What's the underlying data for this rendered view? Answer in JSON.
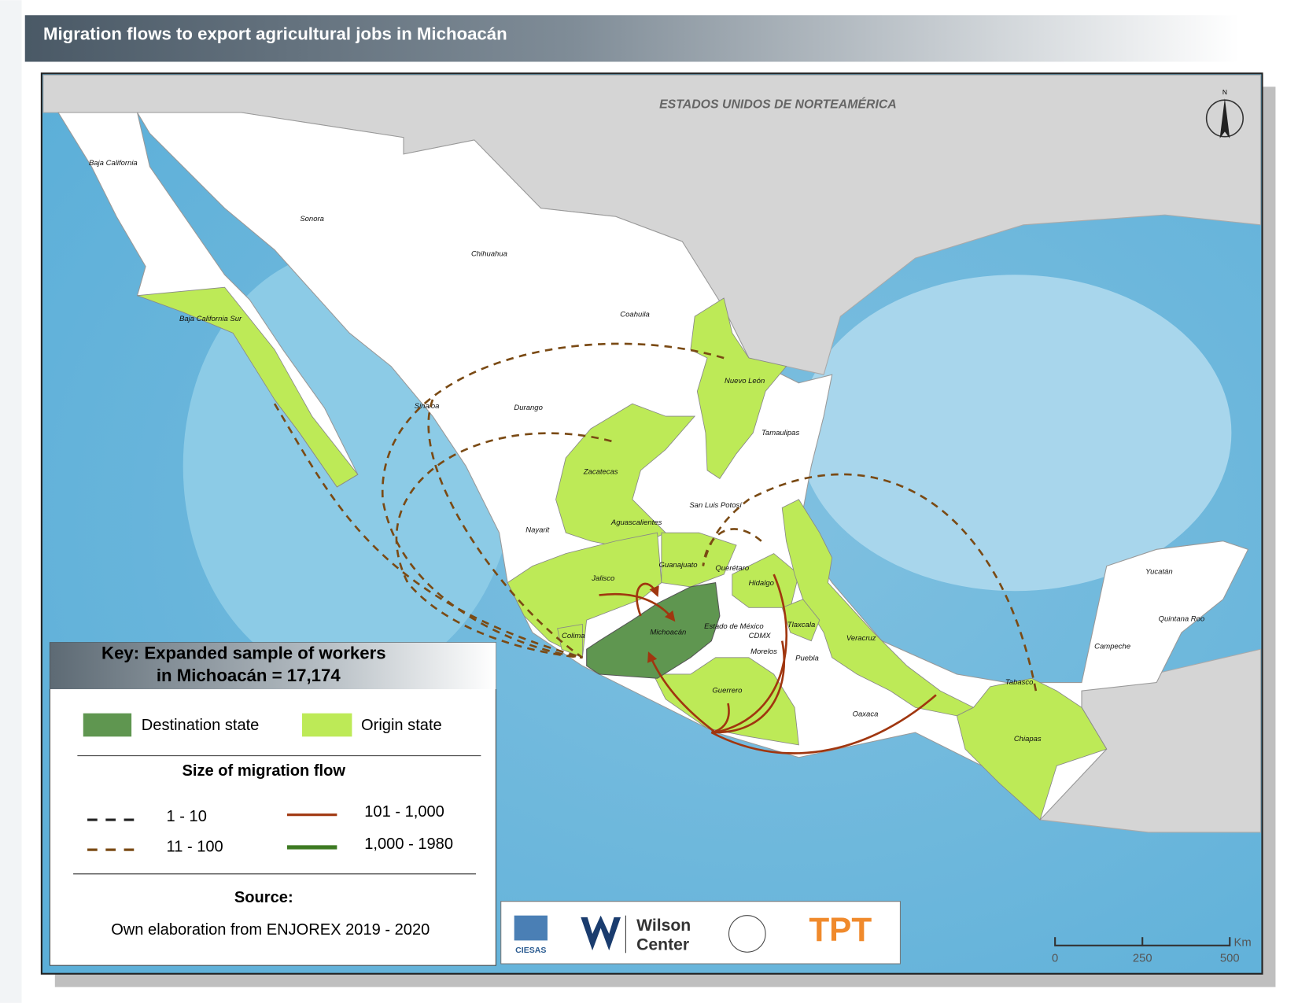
{
  "title": "Migration flows to export agricultural jobs in Michoacán",
  "map": {
    "country_label": "ESTADOS UNIDOS DE NORTEAMÉRICA",
    "north": "N",
    "states": [
      "Baja California",
      "Sonora",
      "Chihuahua",
      "Baja California Sur",
      "Coahuila",
      "Nuevo León",
      "Sinaloa",
      "Durango",
      "Tamaulipas",
      "Zacatecas",
      "San Luis Potosí",
      "Aguascalientes",
      "Nayarit",
      "Guanajuato",
      "Querétaro",
      "Hidalgo",
      "Jalisco",
      "Michoacán",
      "Estado de México",
      "Tlaxcala",
      "CDMX",
      "Colima",
      "Morelos",
      "Puebla",
      "Veracruz",
      "Guerrero",
      "Oaxaca",
      "Chiapas",
      "Tabasco",
      "Campeche",
      "Yucatán",
      "Quintana Roo"
    ]
  },
  "legend": {
    "key_lines": [
      "Key:  Expanded sample of workers",
      "in Michoacán = 17,174"
    ],
    "destination": {
      "label": "Destination state",
      "color": "#5f9650"
    },
    "origin": {
      "label": "Origin state",
      "color": "#bdea57"
    },
    "flow_title": "Size of migration flow",
    "flows": [
      {
        "label": "1 - 10",
        "color": "#222222",
        "dashed": true
      },
      {
        "label": "11 - 100",
        "color": "#7a4a14",
        "dashed": true
      },
      {
        "label": "101 - 1,000",
        "color": "#a0360f",
        "dashed": false
      },
      {
        "label": "1,000 - 1980",
        "color": "#3d7a22",
        "dashed": false
      }
    ],
    "source_title": "Source:",
    "source": "Own elaboration from ENJOREX 2019 - 2020"
  },
  "logos": [
    "CIESAS",
    "Wilson",
    "Center",
    "TPT"
  ],
  "scale": {
    "ticks": [
      0,
      250,
      500
    ],
    "unit": "Km"
  }
}
